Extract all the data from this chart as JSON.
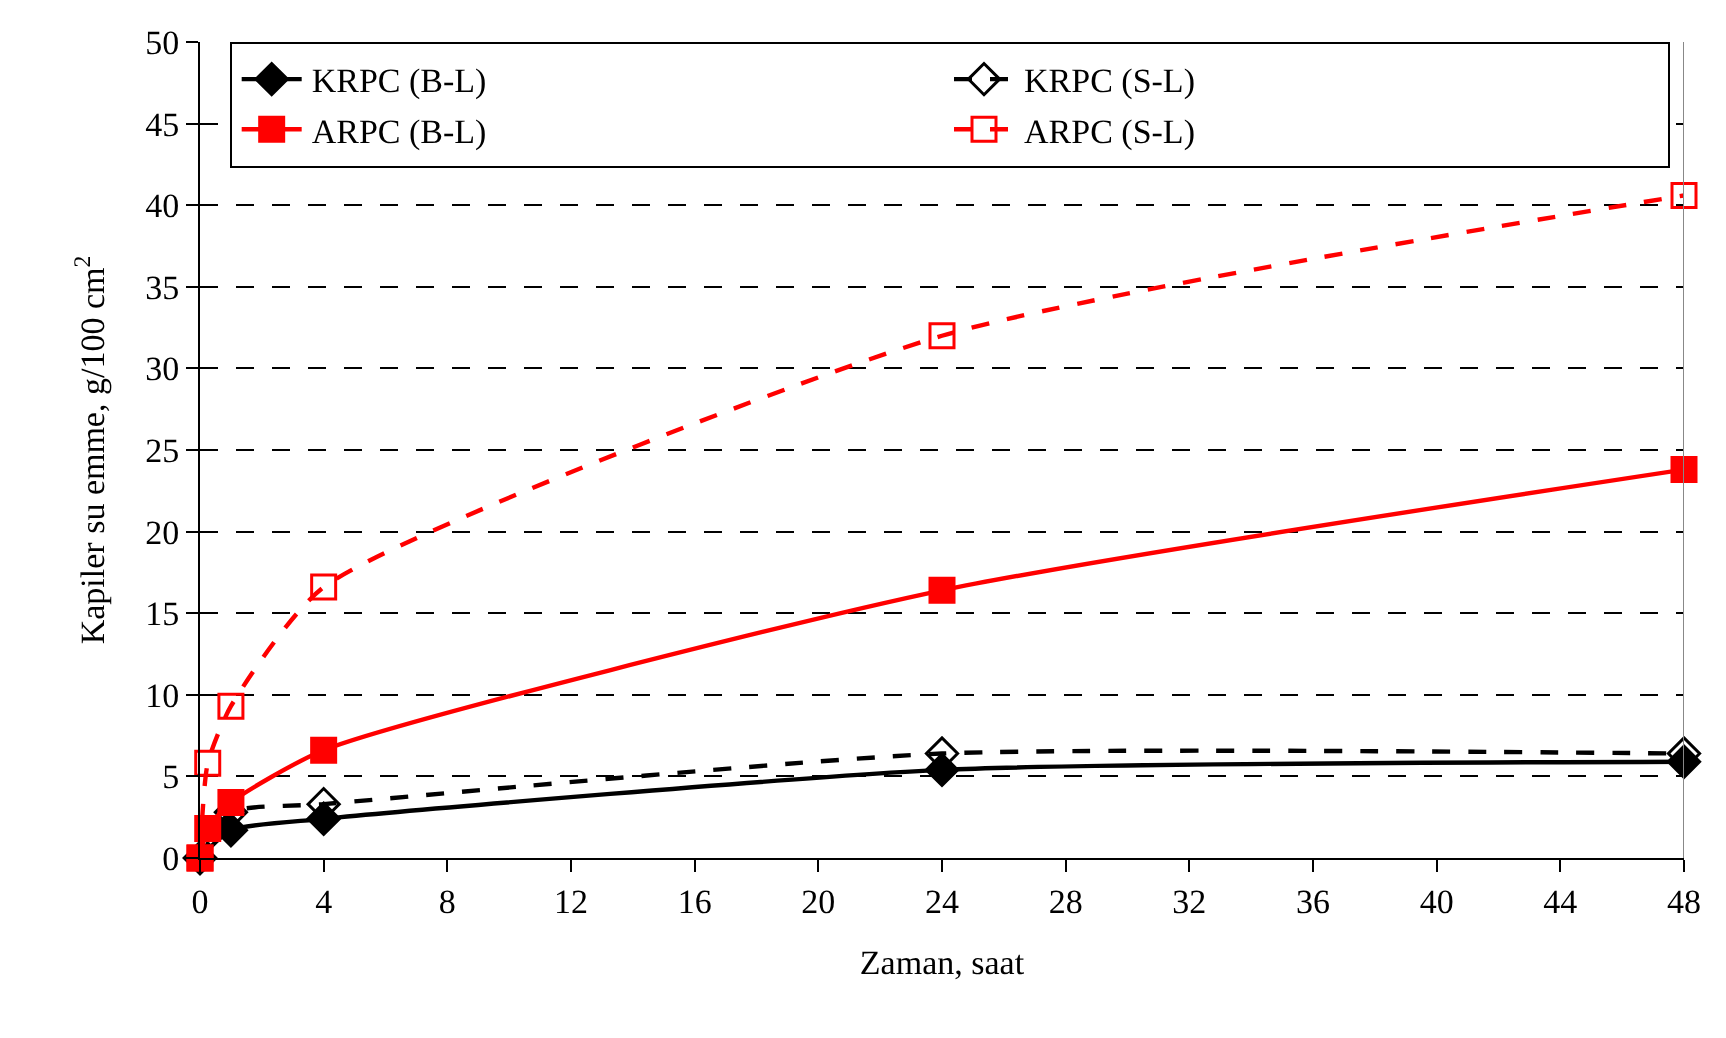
{
  "chart_data": {
    "type": "line",
    "xlabel": "Zaman, saat",
    "ylabel": "Kapiler su emme, g/100 cm$^{2}$",
    "xlim": [
      0,
      48
    ],
    "xticks": [
      0,
      4,
      8,
      12,
      16,
      20,
      24,
      28,
      32,
      36,
      40,
      44,
      48
    ],
    "ylim": [
      0,
      50
    ],
    "yticks": [
      0,
      5,
      10,
      15,
      20,
      25,
      30,
      35,
      40,
      45,
      50
    ],
    "grid": "y",
    "legend": "top",
    "series": [
      {
        "name": "KRPC (B-L)",
        "color": "#000000",
        "marker": "diamond",
        "line_style": "solid",
        "x": [
          0,
          1,
          4,
          24,
          48
        ],
        "values": [
          0,
          1.7,
          2.4,
          5.4,
          5.9
        ]
      },
      {
        "name": "KRPC (S-L)",
        "color": "#000000",
        "marker": "diamond",
        "line_style": "dashed",
        "x": [
          0,
          1,
          4,
          24,
          48
        ],
        "values": [
          0,
          2.8,
          3.3,
          6.4,
          6.4
        ]
      },
      {
        "name": "ARPC (B-L)",
        "color": "#ff0000",
        "marker": "square",
        "line_style": "solid",
        "x": [
          0,
          0.25,
          1,
          4,
          24,
          48
        ],
        "values": [
          0,
          1.8,
          3.4,
          6.6,
          16.4,
          23.8
        ]
      },
      {
        "name": "ARPC (S-L)",
        "color": "#ff0000",
        "marker": "square",
        "line_style": "dashed",
        "x": [
          0,
          0.25,
          1,
          4,
          24,
          48
        ],
        "values": [
          0,
          5.8,
          9.3,
          16.6,
          32,
          40.6
        ]
      }
    ]
  }
}
